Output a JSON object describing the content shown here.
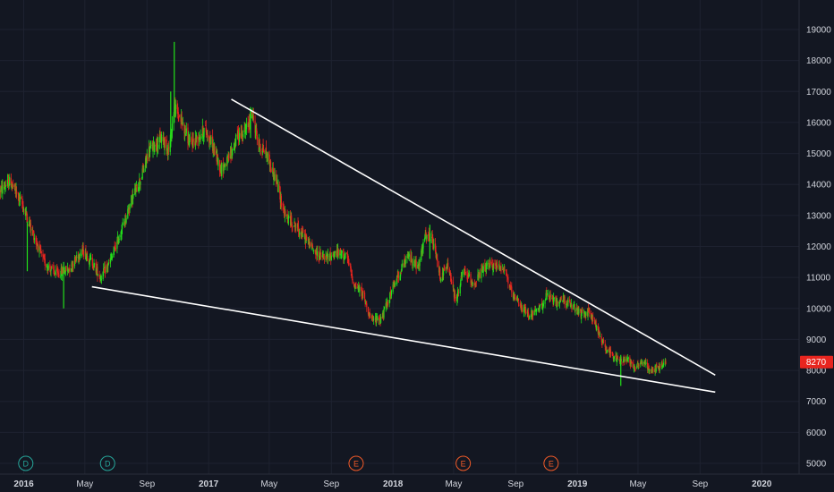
{
  "chart_data": {
    "type": "candlestick",
    "colors": {
      "background": "#131722",
      "grid": "#1e2230",
      "up": "#22e01a",
      "down": "#e8251f",
      "axis_text": "#d1d4dc",
      "trendline": "#ffffff",
      "price_badge": "#e8251f",
      "dividend_marker": "#26a69a",
      "earnings_marker": "#f05a28"
    },
    "y_axis": {
      "min": 4800,
      "max": 19500,
      "ticks": [
        5000,
        6000,
        7000,
        8000,
        9000,
        10000,
        11000,
        12000,
        13000,
        14000,
        15000,
        16000,
        17000,
        18000,
        19000
      ],
      "tick_labels": [
        "5000",
        "6000",
        "7000",
        "8000",
        "9000",
        "10000",
        "11000",
        "12000",
        "13000",
        "14000",
        "15000",
        "16000",
        "17000",
        "18000",
        "19000"
      ]
    },
    "x_axis": {
      "start": "2015-11-15",
      "end": "2020-03-15",
      "ticks": [
        {
          "date": "2016-01-01",
          "label": "2016",
          "bold": true
        },
        {
          "date": "2016-05-01",
          "label": "May",
          "bold": false
        },
        {
          "date": "2016-09-01",
          "label": "Sep",
          "bold": false
        },
        {
          "date": "2017-01-01",
          "label": "2017",
          "bold": true
        },
        {
          "date": "2017-05-01",
          "label": "May",
          "bold": false
        },
        {
          "date": "2017-09-01",
          "label": "Sep",
          "bold": false
        },
        {
          "date": "2018-01-01",
          "label": "2018",
          "bold": true
        },
        {
          "date": "2018-05-01",
          "label": "May",
          "bold": false
        },
        {
          "date": "2018-09-01",
          "label": "Sep",
          "bold": false
        },
        {
          "date": "2019-01-01",
          "label": "2019",
          "bold": true
        },
        {
          "date": "2019-05-01",
          "label": "May",
          "bold": false
        },
        {
          "date": "2019-09-01",
          "label": "Sep",
          "bold": false
        },
        {
          "date": "2020-01-01",
          "label": "2020",
          "bold": true
        }
      ]
    },
    "last_price": {
      "value": 8270,
      "label": "8270"
    },
    "price_path": [
      [
        "2015-11-15",
        13800
      ],
      [
        "2015-12-05",
        14100
      ],
      [
        "2015-12-28",
        13400
      ],
      [
        "2016-01-20",
        12400
      ],
      [
        "2016-02-10",
        11500
      ],
      [
        "2016-03-05",
        11100
      ],
      [
        "2016-04-01",
        11300
      ],
      [
        "2016-04-25",
        11900
      ],
      [
        "2016-05-15",
        11500
      ],
      [
        "2016-06-01",
        11000
      ],
      [
        "2016-06-20",
        11500
      ],
      [
        "2016-07-10",
        12400
      ],
      [
        "2016-08-01",
        13500
      ],
      [
        "2016-08-20",
        14200
      ],
      [
        "2016-09-05",
        15100
      ],
      [
        "2016-10-01",
        15500
      ],
      [
        "2016-10-15",
        15100
      ],
      [
        "2016-10-25",
        16500
      ],
      [
        "2016-11-10",
        16000
      ],
      [
        "2016-11-25",
        15300
      ],
      [
        "2016-12-10",
        15500
      ],
      [
        "2016-12-25",
        15800
      ],
      [
        "2017-01-10",
        15200
      ],
      [
        "2017-01-25",
        14500
      ],
      [
        "2017-02-10",
        14800
      ],
      [
        "2017-02-28",
        15600
      ],
      [
        "2017-03-15",
        15700
      ],
      [
        "2017-03-28",
        16300
      ],
      [
        "2017-04-10",
        15300
      ],
      [
        "2017-04-25",
        15000
      ],
      [
        "2017-05-15",
        14100
      ],
      [
        "2017-06-01",
        13000
      ],
      [
        "2017-06-20",
        12700
      ],
      [
        "2017-07-10",
        12300
      ],
      [
        "2017-08-01",
        11800
      ],
      [
        "2017-08-20",
        11600
      ],
      [
        "2017-09-10",
        11800
      ],
      [
        "2017-10-01",
        11700
      ],
      [
        "2017-10-15",
        10800
      ],
      [
        "2017-11-01",
        10500
      ],
      [
        "2017-11-20",
        9600
      ],
      [
        "2017-12-10",
        9700
      ],
      [
        "2017-12-28",
        10500
      ],
      [
        "2018-01-15",
        11200
      ],
      [
        "2018-02-01",
        11700
      ],
      [
        "2018-02-20",
        11300
      ],
      [
        "2018-03-05",
        12300
      ],
      [
        "2018-03-20",
        12200
      ],
      [
        "2018-04-05",
        11000
      ],
      [
        "2018-04-20",
        11400
      ],
      [
        "2018-05-05",
        10200
      ],
      [
        "2018-05-20",
        11200
      ],
      [
        "2018-06-10",
        10800
      ],
      [
        "2018-07-01",
        11300
      ],
      [
        "2018-07-20",
        11400
      ],
      [
        "2018-08-10",
        11300
      ],
      [
        "2018-08-25",
        10400
      ],
      [
        "2018-09-10",
        10100
      ],
      [
        "2018-09-25",
        9800
      ],
      [
        "2018-10-15",
        9900
      ],
      [
        "2018-11-01",
        10400
      ],
      [
        "2018-11-20",
        10200
      ],
      [
        "2018-12-05",
        10300
      ],
      [
        "2018-12-25",
        10000
      ],
      [
        "2019-01-10",
        9800
      ],
      [
        "2019-01-25",
        9900
      ],
      [
        "2019-02-05",
        9500
      ],
      [
        "2019-02-20",
        8900
      ],
      [
        "2019-03-10",
        8500
      ],
      [
        "2019-03-25",
        8300
      ],
      [
        "2019-04-10",
        8400
      ],
      [
        "2019-04-25",
        8100
      ],
      [
        "2019-05-10",
        8300
      ],
      [
        "2019-05-25",
        8000
      ],
      [
        "2019-06-10",
        8100
      ],
      [
        "2019-06-25",
        8270
      ]
    ],
    "spikes": [
      {
        "date": "2016-10-25",
        "high": 18600,
        "low": 16000
      },
      {
        "date": "2016-10-18",
        "high": 17000,
        "low": 15200
      },
      {
        "date": "2017-03-25",
        "high": 16500,
        "low": 15500
      },
      {
        "date": "2016-03-20",
        "high": 11500,
        "low": 10000
      },
      {
        "date": "2018-03-15",
        "high": 12700,
        "low": 11600
      },
      {
        "date": "2019-03-28",
        "high": 8500,
        "low": 7500
      },
      {
        "date": "2016-01-08",
        "high": 12800,
        "low": 11200
      }
    ],
    "trendlines": [
      {
        "name": "upper",
        "x1": "2017-02-15",
        "y1": 16750,
        "x2": "2019-10-01",
        "y2": 7850
      },
      {
        "name": "lower",
        "x1": "2016-05-15",
        "y1": 10700,
        "x2": "2019-10-01",
        "y2": 7300
      }
    ],
    "event_markers": [
      {
        "date": "2016-01-05",
        "letter": "D",
        "type": "dividend"
      },
      {
        "date": "2016-06-15",
        "letter": "D",
        "type": "dividend"
      },
      {
        "date": "2017-10-20",
        "letter": "E",
        "type": "earnings"
      },
      {
        "date": "2018-05-20",
        "letter": "E",
        "type": "earnings"
      },
      {
        "date": "2018-11-10",
        "letter": "E",
        "type": "earnings"
      }
    ]
  }
}
